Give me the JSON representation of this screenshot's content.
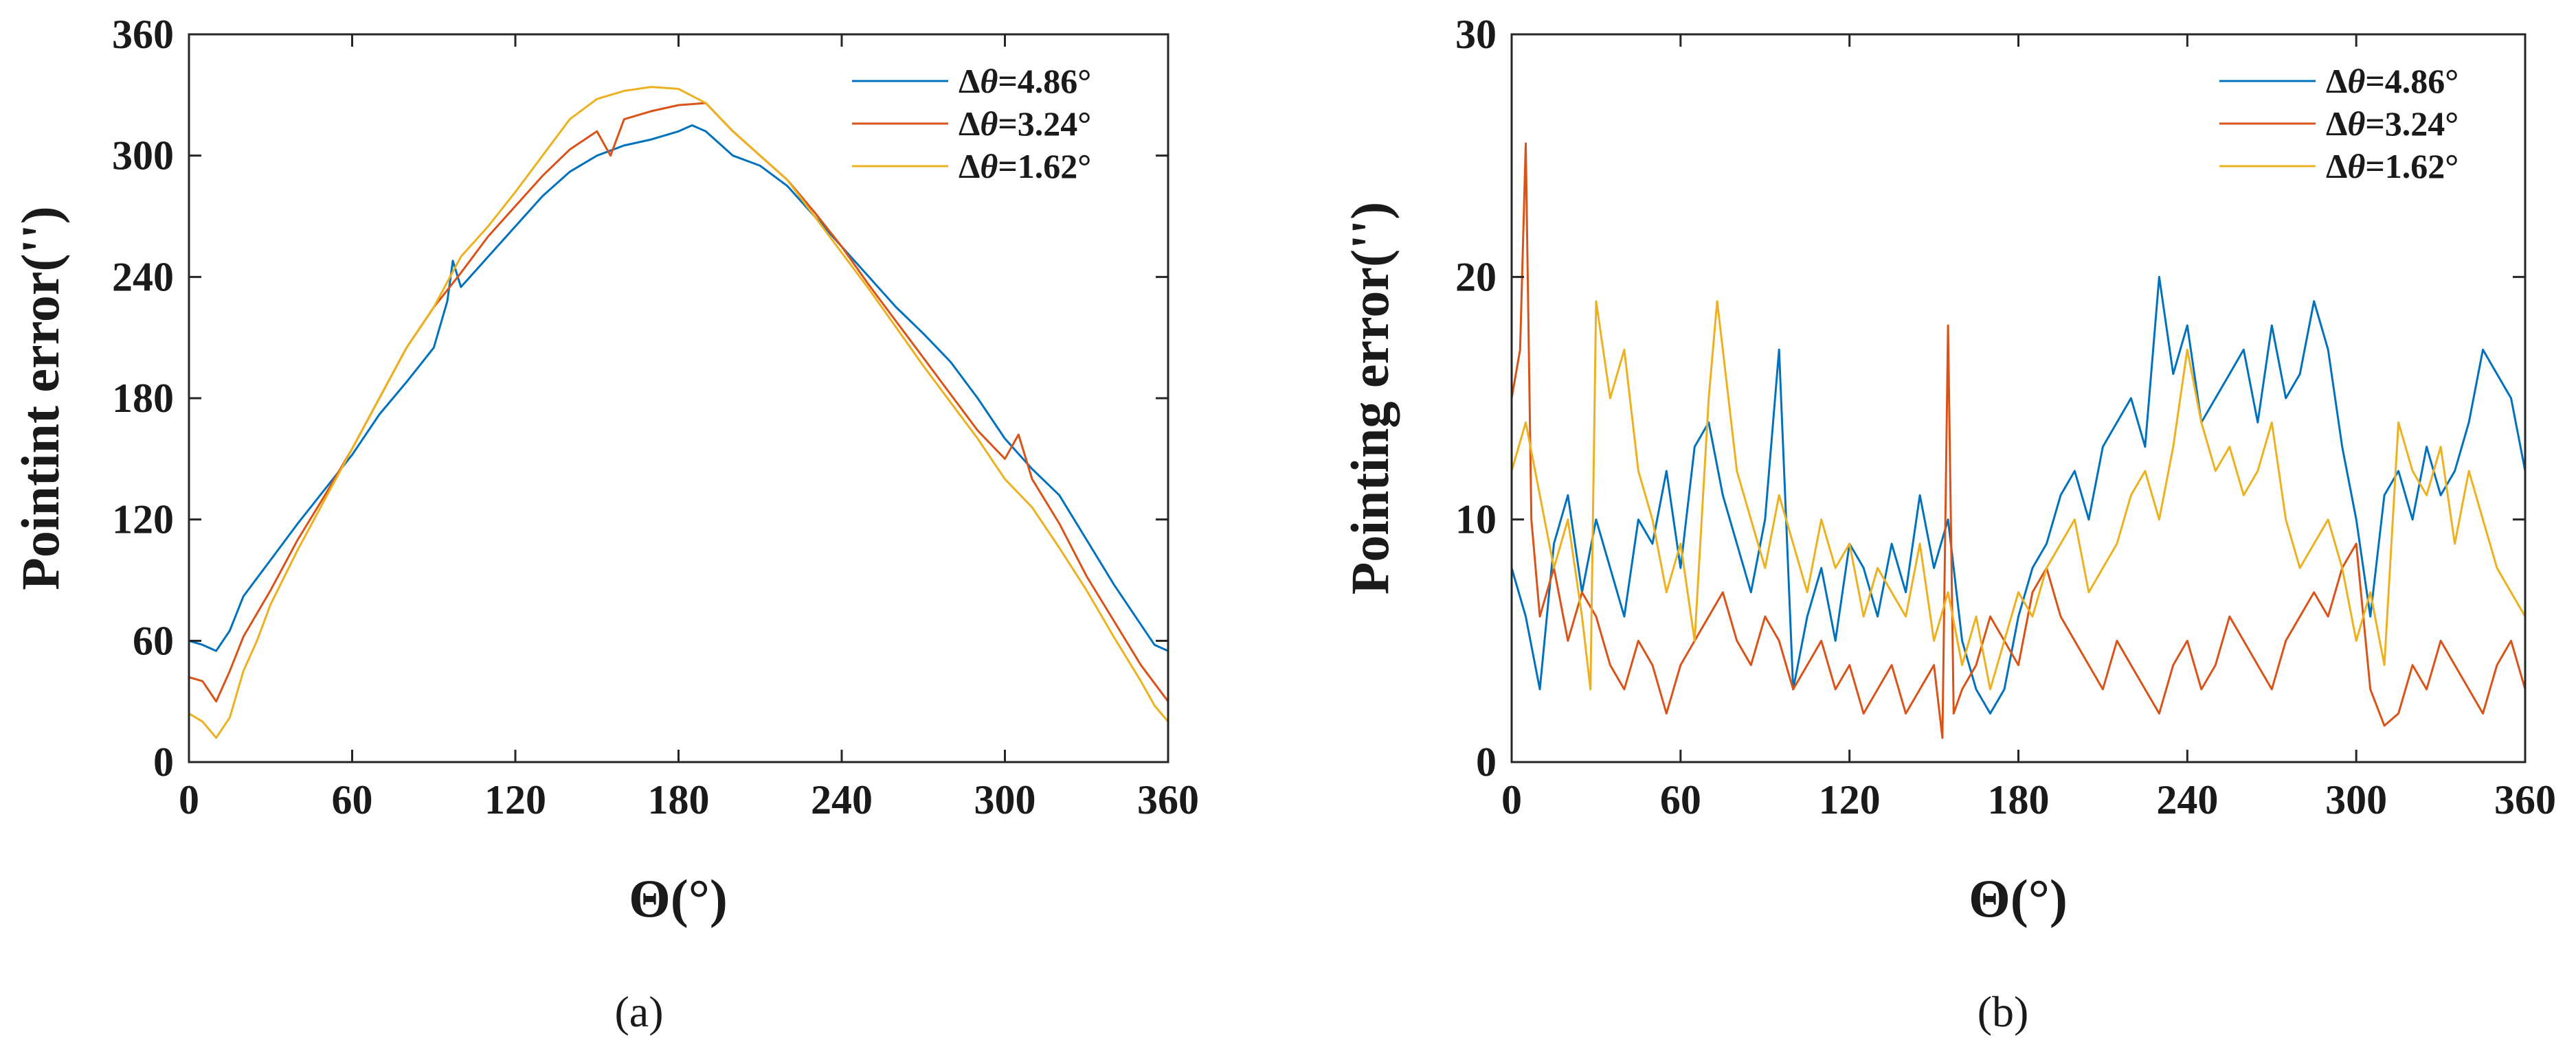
{
  "chart_data": [
    {
      "type": "line",
      "panel_label": "(a)",
      "xlabel": "Θ(°)",
      "ylabel": "Pointint error('')",
      "xlim": [
        0,
        360
      ],
      "ylim": [
        0,
        360
      ],
      "xticks": [
        "0",
        "60",
        "120",
        "180",
        "240",
        "300",
        "360"
      ],
      "yticks": [
        "0",
        "60",
        "120",
        "180",
        "240",
        "300",
        "360"
      ],
      "legend_position": "top-right",
      "series": [
        {
          "name": "Δθ=4.86°",
          "legend_symbol": "Δ",
          "legend_var": "θ",
          "legend_value": "=4.86°",
          "color": "#0072BD",
          "x": [
            0,
            5,
            10,
            15,
            20,
            30,
            40,
            50,
            60,
            70,
            80,
            90,
            95,
            97,
            100,
            110,
            120,
            130,
            140,
            150,
            160,
            170,
            180,
            185,
            190,
            200,
            210,
            220,
            230,
            240,
            250,
            260,
            270,
            280,
            290,
            300,
            310,
            320,
            330,
            340,
            350,
            355,
            360
          ],
          "y": [
            60,
            58,
            55,
            65,
            82,
            100,
            118,
            135,
            152,
            172,
            188,
            205,
            228,
            248,
            235,
            250,
            265,
            280,
            292,
            300,
            305,
            308,
            312,
            315,
            312,
            300,
            295,
            285,
            270,
            255,
            240,
            225,
            212,
            198,
            180,
            160,
            145,
            132,
            110,
            88,
            68,
            58,
            55
          ]
        },
        {
          "name": "Δθ=3.24°",
          "legend_symbol": "Δ",
          "legend_var": "θ",
          "legend_value": "=3.24°",
          "color": "#D95319",
          "x": [
            0,
            5,
            10,
            15,
            20,
            30,
            40,
            50,
            60,
            70,
            80,
            90,
            100,
            110,
            120,
            130,
            140,
            150,
            155,
            160,
            170,
            180,
            190,
            200,
            210,
            220,
            230,
            240,
            250,
            260,
            270,
            280,
            290,
            300,
            305,
            310,
            320,
            330,
            340,
            350,
            360
          ],
          "y": [
            42,
            40,
            30,
            45,
            62,
            85,
            110,
            132,
            155,
            180,
            205,
            225,
            242,
            260,
            275,
            290,
            303,
            312,
            300,
            318,
            322,
            325,
            326,
            312,
            300,
            288,
            272,
            255,
            236,
            218,
            200,
            182,
            164,
            150,
            162,
            140,
            118,
            92,
            70,
            48,
            30
          ]
        },
        {
          "name": "Δθ=1.62°",
          "legend_symbol": "Δ",
          "legend_var": "θ",
          "legend_value": "=1.62°",
          "color": "#EDB120",
          "x": [
            0,
            5,
            10,
            15,
            20,
            25,
            30,
            40,
            50,
            60,
            70,
            80,
            90,
            100,
            110,
            120,
            130,
            140,
            150,
            160,
            170,
            180,
            190,
            200,
            210,
            220,
            230,
            240,
            250,
            260,
            270,
            280,
            290,
            300,
            310,
            320,
            330,
            340,
            350,
            355,
            360
          ],
          "y": [
            24,
            20,
            12,
            22,
            45,
            60,
            78,
            105,
            130,
            155,
            180,
            205,
            225,
            250,
            265,
            282,
            300,
            318,
            328,
            332,
            334,
            333,
            326,
            312,
            300,
            288,
            270,
            252,
            234,
            215,
            196,
            178,
            160,
            140,
            126,
            106,
            85,
            62,
            40,
            28,
            20
          ]
        }
      ]
    },
    {
      "type": "line",
      "panel_label": "(b)",
      "xlabel": "Θ(°)",
      "ylabel": "Pointing error('')",
      "xlim": [
        0,
        360
      ],
      "ylim": [
        0,
        30
      ],
      "xticks": [
        "0",
        "60",
        "120",
        "180",
        "240",
        "300",
        "360"
      ],
      "yticks": [
        "0",
        "10",
        "20",
        "30"
      ],
      "legend_position": "top-right",
      "series": [
        {
          "name": "Δθ=4.86°",
          "legend_symbol": "Δ",
          "legend_var": "θ",
          "legend_value": "=4.86°",
          "color": "#0072BD",
          "x": [
            0,
            5,
            10,
            15,
            20,
            25,
            30,
            35,
            40,
            45,
            50,
            55,
            60,
            65,
            70,
            75,
            80,
            85,
            90,
            95,
            100,
            105,
            110,
            115,
            120,
            125,
            130,
            135,
            140,
            145,
            150,
            155,
            160,
            165,
            170,
            175,
            180,
            185,
            190,
            195,
            200,
            205,
            210,
            215,
            220,
            225,
            230,
            235,
            240,
            245,
            250,
            255,
            260,
            265,
            270,
            275,
            280,
            285,
            290,
            295,
            300,
            305,
            310,
            315,
            320,
            325,
            330,
            335,
            340,
            345,
            350,
            355,
            360
          ],
          "y": [
            8,
            6,
            3,
            9,
            11,
            7,
            10,
            8,
            6,
            10,
            9,
            12,
            8,
            13,
            14,
            11,
            9,
            7,
            10,
            17,
            3,
            6,
            8,
            5,
            9,
            8,
            6,
            9,
            7,
            11,
            8,
            10,
            5,
            3,
            2,
            3,
            6,
            8,
            9,
            11,
            12,
            10,
            13,
            14,
            15,
            13,
            20,
            16,
            18,
            14,
            15,
            16,
            17,
            14,
            18,
            15,
            16,
            19,
            17,
            13,
            10,
            6,
            11,
            12,
            10,
            13,
            11,
            12,
            14,
            17,
            16,
            15,
            12
          ]
        },
        {
          "name": "Δθ=3.24°",
          "legend_symbol": "Δ",
          "legend_var": "θ",
          "legend_value": "=3.24°",
          "color": "#D95319",
          "x": [
            0,
            3,
            5,
            7,
            10,
            15,
            20,
            25,
            30,
            35,
            40,
            45,
            50,
            55,
            60,
            65,
            70,
            75,
            80,
            85,
            90,
            95,
            100,
            105,
            110,
            115,
            120,
            125,
            130,
            135,
            140,
            145,
            150,
            153,
            155,
            157,
            160,
            165,
            170,
            175,
            180,
            185,
            190,
            195,
            200,
            205,
            210,
            215,
            220,
            225,
            230,
            235,
            240,
            245,
            250,
            255,
            260,
            265,
            270,
            275,
            280,
            285,
            290,
            295,
            300,
            305,
            310,
            315,
            320,
            325,
            330,
            335,
            340,
            345,
            350,
            355,
            360
          ],
          "y": [
            15,
            17,
            25.5,
            10,
            6,
            8,
            5,
            7,
            6,
            4,
            3,
            5,
            4,
            2,
            4,
            5,
            6,
            7,
            5,
            4,
            6,
            5,
            3,
            4,
            5,
            3,
            4,
            2,
            3,
            4,
            2,
            3,
            4,
            1,
            18,
            2,
            3,
            4,
            6,
            5,
            4,
            7,
            8,
            6,
            5,
            4,
            3,
            5,
            4,
            3,
            2,
            4,
            5,
            3,
            4,
            6,
            5,
            4,
            3,
            5,
            6,
            7,
            6,
            8,
            9,
            3,
            1.5,
            2,
            4,
            3,
            5,
            4,
            3,
            2,
            4,
            5,
            3
          ]
        },
        {
          "name": "Δθ=1.62°",
          "legend_symbol": "Δ",
          "legend_var": "θ",
          "legend_value": "=1.62°",
          "color": "#EDB120",
          "x": [
            0,
            5,
            10,
            15,
            20,
            25,
            28,
            30,
            35,
            40,
            45,
            50,
            55,
            60,
            65,
            70,
            73,
            75,
            80,
            85,
            90,
            95,
            100,
            105,
            110,
            115,
            120,
            125,
            130,
            135,
            140,
            145,
            150,
            155,
            160,
            165,
            170,
            175,
            180,
            185,
            190,
            195,
            200,
            205,
            210,
            215,
            220,
            225,
            230,
            235,
            240,
            245,
            250,
            255,
            260,
            265,
            270,
            275,
            280,
            285,
            290,
            295,
            300,
            305,
            310,
            315,
            320,
            325,
            330,
            335,
            340,
            345,
            350,
            355,
            360
          ],
          "y": [
            12,
            14,
            11,
            8,
            10,
            6,
            3,
            19,
            15,
            17,
            12,
            10,
            7,
            9,
            5,
            15,
            19,
            17,
            12,
            10,
            8,
            11,
            9,
            7,
            10,
            8,
            9,
            6,
            8,
            7,
            6,
            9,
            5,
            7,
            4,
            6,
            3,
            5,
            7,
            6,
            8,
            9,
            10,
            7,
            8,
            9,
            11,
            12,
            10,
            13,
            17,
            14,
            12,
            13,
            11,
            12,
            14,
            10,
            8,
            9,
            10,
            8,
            5,
            7,
            4,
            14,
            12,
            11,
            13,
            9,
            12,
            10,
            8,
            7,
            6
          ]
        }
      ]
    }
  ]
}
